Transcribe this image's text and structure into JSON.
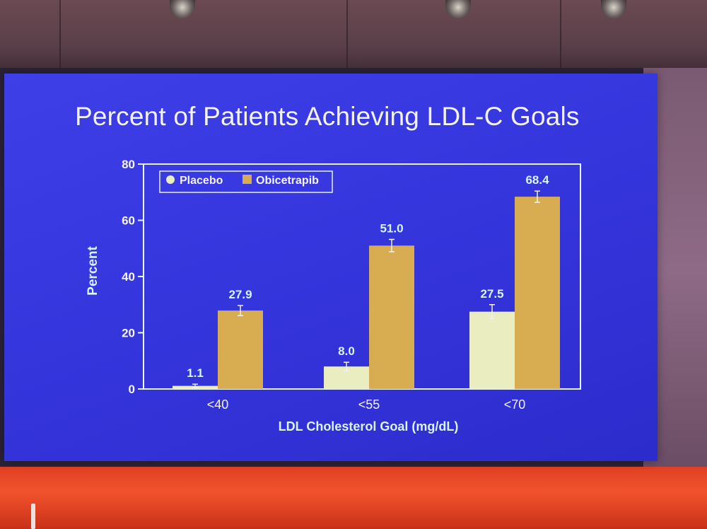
{
  "slide": {
    "title": "Percent of Patients Achieving LDL-C Goals"
  },
  "colors": {
    "placebo": "#e9edc0",
    "obicetrapib": "#d8ad52",
    "axis": "#e8f4ff",
    "label_text": "#d8f4ff",
    "tick_text": "#f5f5f5",
    "slide_bg": "#3838df"
  },
  "chart_data": {
    "type": "bar",
    "title": "Percent of Patients Achieving LDL-C Goals",
    "xlabel": "LDL Cholesterol Goal (mg/dL)",
    "ylabel": "Percent",
    "ylim": [
      0,
      80
    ],
    "yticks": [
      0,
      20,
      40,
      60,
      80
    ],
    "categories": [
      "<40",
      "<55",
      "<70"
    ],
    "series": [
      {
        "name": "Placebo",
        "values": [
          1.1,
          8.0,
          27.5
        ],
        "labels": [
          "1.1",
          "8.0",
          "27.5"
        ],
        "error": [
          0.6,
          1.5,
          2.5
        ]
      },
      {
        "name": "Obicetrapib",
        "values": [
          27.9,
          51.0,
          68.4
        ],
        "labels": [
          "27.9",
          "51.0",
          "68.4"
        ],
        "error": [
          1.8,
          2.2,
          2.0
        ]
      }
    ],
    "legend": {
      "position": "top-left"
    },
    "grid": false
  }
}
